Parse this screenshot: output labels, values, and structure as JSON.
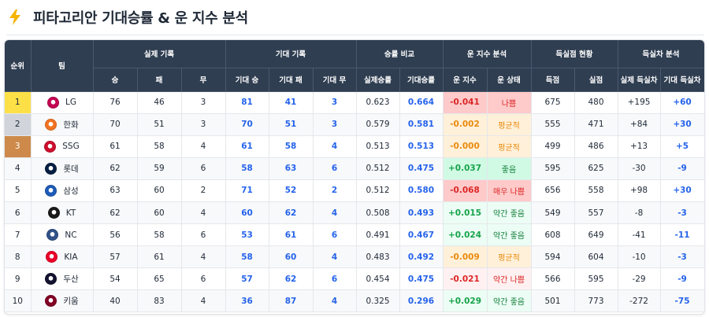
{
  "header": {
    "title": "피타고리안 기대승률 & 운 지수 분석",
    "icon": "lightning-bolt-icon"
  },
  "table": {
    "group_headers": {
      "rank": "순위",
      "team": "팀",
      "actual": "실제 기록",
      "expected": "기대 기록",
      "winpct": "승률 비교",
      "luck": "운 지수 분석",
      "runs": "득실점 현황",
      "diff": "득실차 분석"
    },
    "sub_headers": {
      "w": "승",
      "l": "패",
      "d": "무",
      "ew": "기대 승",
      "el": "기대 패",
      "ed": "기대 무",
      "actual_pct": "실제승률",
      "expected_pct": "기대승률",
      "luck_index": "운 지수",
      "luck_state": "운 상태",
      "rs": "득점",
      "ra": "실점",
      "actual_diff": "실제 득실차",
      "expected_diff": "기대 득실차"
    },
    "rows": [
      {
        "rank": "1",
        "team": "LG",
        "w": "76",
        "l": "46",
        "d": "3",
        "ew": "81",
        "el": "41",
        "ed": "3",
        "actual_pct": "0.623",
        "expected_pct": "0.664",
        "luck": "-0.041",
        "state": "나쁨",
        "rs": "675",
        "ra": "480",
        "actual_diff": "+195",
        "expected_diff": "+60"
      },
      {
        "rank": "2",
        "team": "한화",
        "w": "70",
        "l": "51",
        "d": "3",
        "ew": "70",
        "el": "51",
        "ed": "3",
        "actual_pct": "0.579",
        "expected_pct": "0.581",
        "luck": "-0.002",
        "state": "평균적",
        "rs": "555",
        "ra": "471",
        "actual_diff": "+84",
        "expected_diff": "+30"
      },
      {
        "rank": "3",
        "team": "SSG",
        "w": "61",
        "l": "58",
        "d": "4",
        "ew": "61",
        "el": "58",
        "ed": "4",
        "actual_pct": "0.513",
        "expected_pct": "0.513",
        "luck": "-0.000",
        "state": "평균적",
        "rs": "499",
        "ra": "486",
        "actual_diff": "+13",
        "expected_diff": "+5"
      },
      {
        "rank": "4",
        "team": "롯데",
        "w": "62",
        "l": "59",
        "d": "6",
        "ew": "58",
        "el": "63",
        "ed": "6",
        "actual_pct": "0.512",
        "expected_pct": "0.475",
        "luck": "+0.037",
        "state": "좋음",
        "rs": "595",
        "ra": "625",
        "actual_diff": "-30",
        "expected_diff": "-9"
      },
      {
        "rank": "5",
        "team": "삼성",
        "w": "63",
        "l": "60",
        "d": "2",
        "ew": "71",
        "el": "52",
        "ed": "2",
        "actual_pct": "0.512",
        "expected_pct": "0.580",
        "luck": "-0.068",
        "state": "매우 나쁨",
        "rs": "656",
        "ra": "558",
        "actual_diff": "+98",
        "expected_diff": "+30"
      },
      {
        "rank": "6",
        "team": "KT",
        "w": "62",
        "l": "60",
        "d": "4",
        "ew": "60",
        "el": "62",
        "ed": "4",
        "actual_pct": "0.508",
        "expected_pct": "0.493",
        "luck": "+0.015",
        "state": "약간 좋음",
        "rs": "549",
        "ra": "557",
        "actual_diff": "-8",
        "expected_diff": "-3"
      },
      {
        "rank": "7",
        "team": "NC",
        "w": "56",
        "l": "58",
        "d": "6",
        "ew": "53",
        "el": "61",
        "ed": "6",
        "actual_pct": "0.491",
        "expected_pct": "0.467",
        "luck": "+0.024",
        "state": "약간 좋음",
        "rs": "608",
        "ra": "649",
        "actual_diff": "-41",
        "expected_diff": "-11"
      },
      {
        "rank": "8",
        "team": "KIA",
        "w": "57",
        "l": "61",
        "d": "4",
        "ew": "58",
        "el": "60",
        "ed": "4",
        "actual_pct": "0.483",
        "expected_pct": "0.492",
        "luck": "-0.009",
        "state": "평균적",
        "rs": "594",
        "ra": "604",
        "actual_diff": "-10",
        "expected_diff": "-3"
      },
      {
        "rank": "9",
        "team": "두산",
        "w": "54",
        "l": "65",
        "d": "6",
        "ew": "57",
        "el": "62",
        "ed": "6",
        "actual_pct": "0.454",
        "expected_pct": "0.475",
        "luck": "-0.021",
        "state": "약간 나쁨",
        "rs": "566",
        "ra": "595",
        "actual_diff": "-29",
        "expected_diff": "-9"
      },
      {
        "rank": "10",
        "team": "키움",
        "w": "40",
        "l": "83",
        "d": "4",
        "ew": "36",
        "el": "87",
        "ed": "4",
        "actual_pct": "0.325",
        "expected_pct": "0.296",
        "luck": "+0.029",
        "state": "약간 좋음",
        "rs": "501",
        "ra": "773",
        "actual_diff": "-272",
        "expected_diff": "-75"
      }
    ],
    "row_styles": [
      {
        "rank_medal": "g",
        "luck_tone": "neg-strong",
        "logo_color": "#c30452"
      },
      {
        "rank_medal": "s",
        "luck_tone": "neutral",
        "logo_color": "#f37321"
      },
      {
        "rank_medal": "b",
        "luck_tone": "neutral",
        "logo_color": "#ce0e2d"
      },
      {
        "rank_medal": "",
        "luck_tone": "pos-strong",
        "logo_color": "#041e42"
      },
      {
        "rank_medal": "",
        "luck_tone": "neg-strong",
        "logo_color": "#1e5bb8"
      },
      {
        "rank_medal": "",
        "luck_tone": "pos-weak",
        "logo_color": "#1a1a1a"
      },
      {
        "rank_medal": "",
        "luck_tone": "pos-weak",
        "logo_color": "#315288"
      },
      {
        "rank_medal": "",
        "luck_tone": "neutral",
        "logo_color": "#ea0029"
      },
      {
        "rank_medal": "",
        "luck_tone": "neg-weak",
        "logo_color": "#131230"
      },
      {
        "rank_medal": "",
        "luck_tone": "pos-weak",
        "logo_color": "#820024"
      }
    ]
  }
}
